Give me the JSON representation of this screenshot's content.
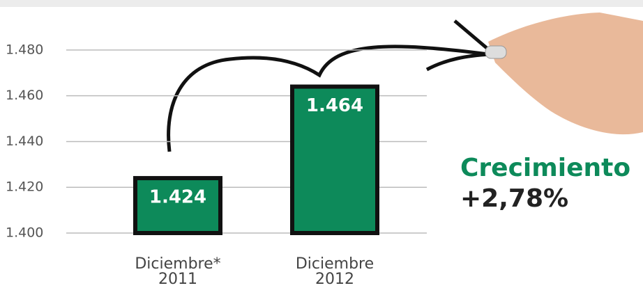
{
  "chart_data": {
    "type": "bar",
    "categories": [
      [
        "Diciembre*",
        "2011"
      ],
      [
        "Diciembre",
        "2012"
      ]
    ],
    "values": [
      1424,
      1464
    ],
    "value_labels": [
      "1.424",
      "1.464"
    ],
    "color": "#0d8a5a",
    "ylim": [
      1400,
      1490
    ],
    "yticks": [
      {
        "value": 1400,
        "label": "1.400"
      },
      {
        "value": 1420,
        "label": "1.420"
      },
      {
        "value": 1440,
        "label": "1.440"
      },
      {
        "value": 1460,
        "label": "1.460"
      },
      {
        "value": 1480,
        "label": "1.480"
      }
    ],
    "grid": true,
    "annotations": [
      "Crecimiento",
      "+2,78%"
    ]
  }
}
